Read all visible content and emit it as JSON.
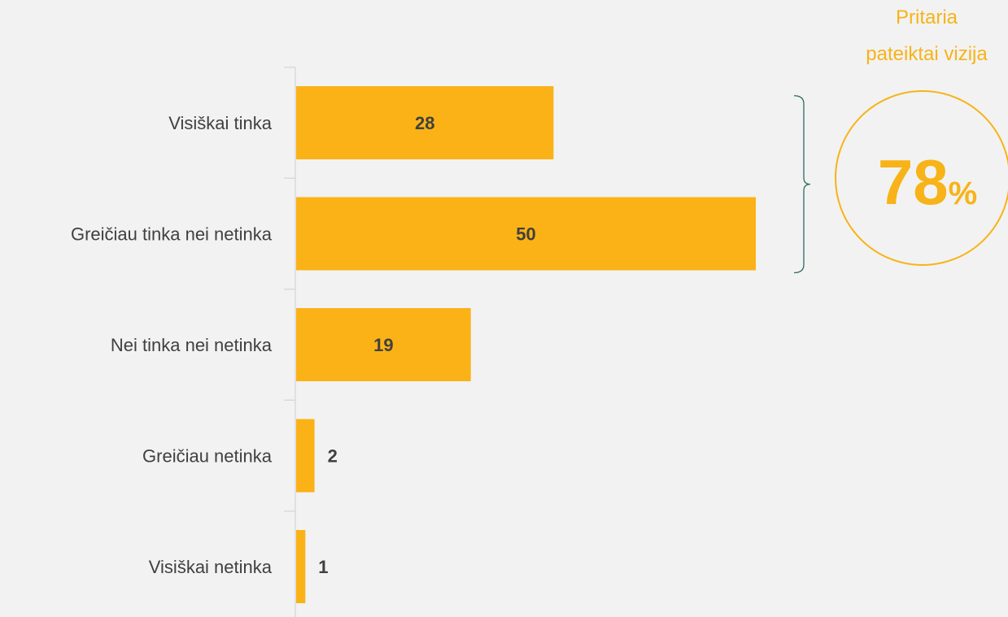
{
  "chart_data": {
    "type": "bar",
    "orientation": "horizontal",
    "categories": [
      "Visiškai tinka",
      "Greičiau tinka nei netinka",
      "Nei tinka nei netinka",
      "Greičiau netinka",
      "Visiškai netinka"
    ],
    "values": [
      28,
      50,
      19,
      2,
      1
    ],
    "data_labels": [
      "28",
      "50",
      "19",
      "2",
      "1"
    ],
    "title": "",
    "xlabel": "",
    "ylabel": "",
    "xlim": [
      0,
      50
    ],
    "grid": false,
    "legend": "none",
    "bar_color": "#fbb216"
  },
  "callout": {
    "title_line1": "Pritaria",
    "title_line2": "pateiktai vizija",
    "value": "78",
    "unit": "%",
    "accent_color": "#f7b318",
    "bracket_color": "#2f6b5e"
  }
}
